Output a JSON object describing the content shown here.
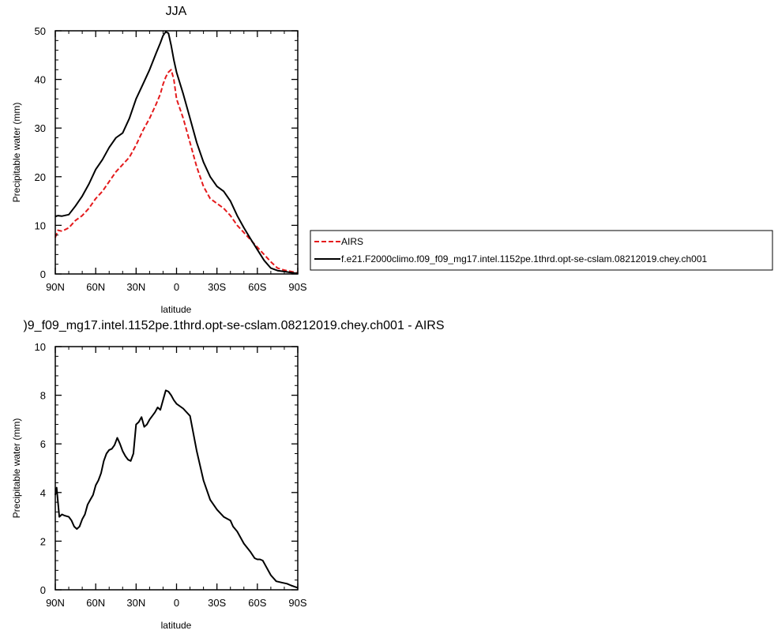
{
  "chart_data": [
    {
      "type": "line",
      "title": "JJA",
      "xlabel": "latitude",
      "ylabel": "Precipitable water (mm)",
      "xlim": [
        90,
        -90
      ],
      "ylim": [
        0,
        50
      ],
      "x_ticks": [
        90,
        60,
        30,
        0,
        -30,
        -60,
        -90
      ],
      "x_tick_labels": [
        "90N",
        "60N",
        "30N",
        "0",
        "30S",
        "60S",
        "90S"
      ],
      "y_ticks": [
        0,
        10,
        20,
        30,
        40,
        50
      ],
      "y_tick_labels": [
        "0",
        "10",
        "20",
        "30",
        "40",
        "50"
      ],
      "grid": false,
      "legend_position": "right, outside plot",
      "series": [
        {
          "name": "AIRS",
          "color": "#e41a1c",
          "style": "dashed",
          "x": [
            90,
            88,
            85,
            80,
            75,
            70,
            65,
            60,
            55,
            50,
            45,
            40,
            35,
            30,
            25,
            20,
            15,
            12,
            10,
            8,
            6,
            4,
            2,
            0,
            -5,
            -10,
            -15,
            -20,
            -25,
            -30,
            -35,
            -40,
            -45,
            -50,
            -55,
            -60,
            -65,
            -70,
            -75,
            -80,
            -85,
            -90
          ],
          "y": [
            7.5,
            9,
            8.8,
            9.5,
            11,
            12,
            13.5,
            15.5,
            17,
            19,
            21,
            22.5,
            24,
            26.5,
            29.5,
            32,
            35,
            37,
            39,
            40.5,
            41.5,
            42,
            40,
            36,
            32,
            27,
            22,
            18,
            15.5,
            14.5,
            13.5,
            12,
            10,
            8.5,
            7,
            5.5,
            4,
            2.5,
            1.2,
            0.8,
            0.5,
            0.2
          ]
        },
        {
          "name": "f.e21.F2000climo.f09_f09_mg17.intel.1152pe.1thrd.opt-se-cslam.08212019.chey.ch001",
          "color": "#000000",
          "style": "solid",
          "x": [
            90,
            88,
            85,
            80,
            75,
            70,
            65,
            60,
            55,
            50,
            45,
            40,
            35,
            30,
            25,
            20,
            15,
            12,
            10,
            8,
            6,
            4,
            2,
            0,
            -5,
            -10,
            -15,
            -20,
            -25,
            -30,
            -35,
            -40,
            -45,
            -50,
            -55,
            -60,
            -65,
            -70,
            -75,
            -80,
            -85,
            -90
          ],
          "y": [
            11.8,
            12,
            11.9,
            12.2,
            14,
            16,
            18.5,
            21.5,
            23.5,
            26,
            28,
            29,
            32,
            36,
            39,
            42,
            45.5,
            47.5,
            49,
            49.8,
            49.5,
            47,
            44,
            41.5,
            37,
            32,
            27,
            23,
            20,
            18,
            17,
            15,
            12,
            9.5,
            7.2,
            5,
            2.8,
            1.2,
            0.7,
            0.5,
            0.3,
            0.1
          ]
        }
      ]
    },
    {
      "type": "line",
      "title": ")9_f09_mg17.intel.1152pe.1thrd.opt-se-cslam.08212019.chey.ch001 - AIRS",
      "xlabel": "latitude",
      "ylabel": "Precipitable water (mm)",
      "xlim": [
        90,
        -90
      ],
      "ylim": [
        0,
        10
      ],
      "x_ticks": [
        90,
        60,
        30,
        0,
        -30,
        -60,
        -90
      ],
      "x_tick_labels": [
        "90N",
        "60N",
        "30N",
        "0",
        "30S",
        "60S",
        "90S"
      ],
      "y_ticks": [
        0,
        2,
        4,
        6,
        8,
        10
      ],
      "y_tick_labels": [
        "0",
        "2",
        "4",
        "6",
        "8",
        "10"
      ],
      "grid": false,
      "series": [
        {
          "color": "#000000",
          "style": "solid",
          "x": [
            90,
            89,
            88,
            87,
            85,
            83,
            80,
            78,
            76,
            74,
            72,
            70,
            68,
            66,
            64,
            62,
            60,
            58,
            56,
            54,
            52,
            50,
            48,
            46,
            44,
            42,
            40,
            38,
            36,
            34,
            32,
            30,
            28,
            26,
            24,
            22,
            20,
            18,
            16,
            14,
            12,
            10,
            8,
            6,
            4,
            2,
            0,
            -5,
            -10,
            -15,
            -20,
            -25,
            -30,
            -35,
            -40,
            -42,
            -45,
            -50,
            -55,
            -58,
            -60,
            -62,
            -64,
            -66,
            -68,
            -70,
            -74,
            -78,
            -82,
            -85,
            -88,
            -90
          ],
          "y": [
            3.9,
            4.2,
            3.6,
            3.0,
            3.1,
            3.05,
            3.0,
            2.85,
            2.6,
            2.5,
            2.6,
            2.9,
            3.1,
            3.5,
            3.7,
            3.9,
            4.3,
            4.5,
            4.8,
            5.3,
            5.6,
            5.75,
            5.8,
            5.95,
            6.25,
            6.0,
            5.7,
            5.5,
            5.35,
            5.3,
            5.6,
            6.8,
            6.9,
            7.1,
            6.7,
            6.8,
            7.0,
            7.15,
            7.3,
            7.5,
            7.4,
            7.8,
            8.2,
            8.15,
            8.0,
            7.8,
            7.65,
            7.45,
            7.15,
            5.7,
            4.5,
            3.7,
            3.3,
            3.0,
            2.85,
            2.6,
            2.4,
            1.9,
            1.55,
            1.3,
            1.25,
            1.25,
            1.2,
            1.0,
            0.8,
            0.6,
            0.35,
            0.3,
            0.25,
            0.18,
            0.12,
            0.08
          ]
        }
      ]
    }
  ]
}
